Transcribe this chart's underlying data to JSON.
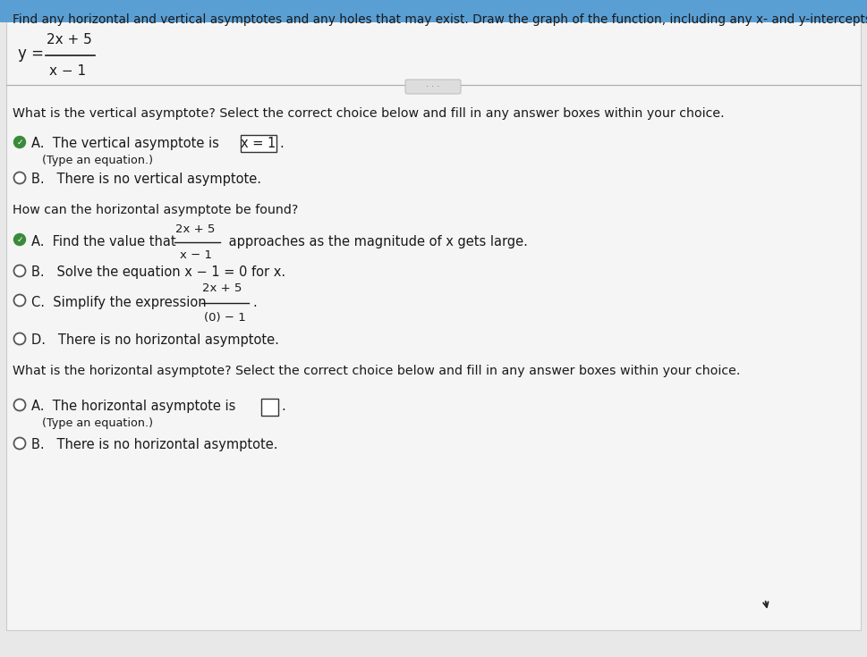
{
  "bg_color": "#e8e8e8",
  "content_bg": "#f2f2f2",
  "top_bar_color": "#5a9fd4",
  "title_text": "Find any horizontal and vertical asymptotes and any holes that may exist. Draw the graph of the function, including any x- and y-intercepts.",
  "divider_color": "#aaaaaa",
  "section1_question": "What is the vertical asymptote? Select the correct choice below and fill in any answer boxes within your choice.",
  "va_B": "B.   There is no vertical asymptote.",
  "section2_question": "How can the horizontal asymptote be found?",
  "ha_method_B": "B.   Solve the equation x − 1 = 0 for x.",
  "ha_method_D": "D.   There is no horizontal asymptote.",
  "section3_question": "What is the horizontal asymptote? Select the correct choice below and fill in any answer boxes within your choice.",
  "horiz_B": "B.   There is no horizontal asymptote.",
  "checkmark_color": "#3a8a3a",
  "radio_color": "#555555",
  "text_color": "#1a1a1a",
  "box_border": "#333333",
  "frac_line_color": "#1a1a1a"
}
